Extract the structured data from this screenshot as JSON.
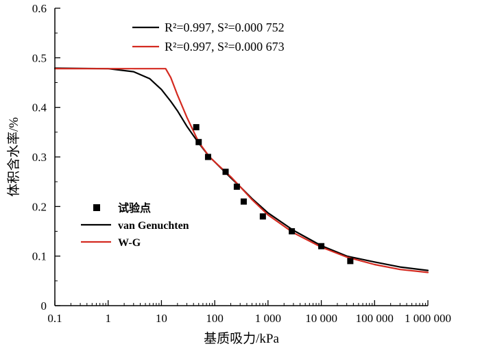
{
  "chart_data": {
    "type": "scatter",
    "xscale": "log",
    "xlim": [
      0.1,
      1000000
    ],
    "ylim": [
      0,
      0.6
    ],
    "xlabel": "基质吸力/kPa",
    "ylabel": "体积含水率/%",
    "xticks": [
      0.1,
      1,
      10,
      100,
      1000,
      10000,
      100000,
      1000000
    ],
    "xtick_labels": [
      "0.1",
      "1",
      "10",
      "100",
      "1 000",
      "10 000",
      "100 000",
      "1 000 000"
    ],
    "yticks": [
      0,
      0.1,
      0.2,
      0.3,
      0.4,
      0.5,
      0.6
    ],
    "ytick_labels": [
      "0",
      "0.1",
      "0.2",
      "0.3",
      "0.4",
      "0.5",
      "0.6"
    ],
    "legend_position": "left",
    "series": [
      {
        "name": "试验点",
        "kind": "points",
        "color": "#000000",
        "x": [
          45,
          50,
          75,
          160,
          260,
          350,
          800,
          2800,
          10000,
          35000
        ],
        "y": [
          0.36,
          0.33,
          0.3,
          0.27,
          0.24,
          0.21,
          0.18,
          0.15,
          0.12,
          0.09
        ]
      },
      {
        "name": "van Genuchten",
        "kind": "curve",
        "color": "#000000",
        "x": [
          0.1,
          1,
          3,
          6,
          10,
          15,
          20,
          30,
          50,
          80,
          100,
          200,
          300,
          500,
          1000,
          3000,
          10000,
          30000,
          100000,
          300000,
          1000000
        ],
        "y": [
          0.479,
          0.478,
          0.472,
          0.458,
          0.436,
          0.412,
          0.393,
          0.362,
          0.328,
          0.3,
          0.29,
          0.258,
          0.24,
          0.216,
          0.187,
          0.152,
          0.121,
          0.1,
          0.088,
          0.078,
          0.071
        ]
      },
      {
        "name": "W-G",
        "kind": "curve",
        "color": "#d42a20",
        "x": [
          0.1,
          1,
          5,
          10,
          12,
          15,
          20,
          30,
          50,
          80,
          100,
          200,
          300,
          500,
          1000,
          3000,
          10000,
          30000,
          100000,
          300000,
          1000000
        ],
        "y": [
          0.478,
          0.478,
          0.478,
          0.478,
          0.478,
          0.46,
          0.425,
          0.38,
          0.33,
          0.3,
          0.29,
          0.26,
          0.24,
          0.214,
          0.183,
          0.147,
          0.118,
          0.098,
          0.083,
          0.073,
          0.067
        ]
      }
    ],
    "annotations": [
      {
        "text": "R²=0.997, S²=0.000 752",
        "color": "#000000"
      },
      {
        "text": "R²=0.997, S²=0.000 673",
        "color": "#d42a20"
      }
    ]
  }
}
